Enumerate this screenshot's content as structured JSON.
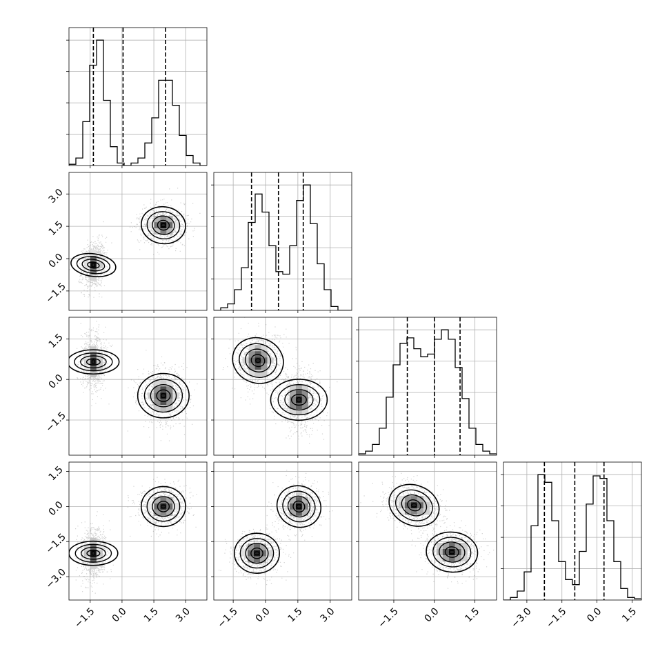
{
  "chart_data": {
    "type": "corner",
    "dimensions": 4,
    "grid": true,
    "axes": [
      {
        "range": [
          -2.5,
          4.0
        ],
        "ticks": [
          -1.5,
          0.0,
          1.5,
          3.0
        ],
        "tick_labels": [
          "−1.5",
          "0.0",
          "1.5",
          "3.0"
        ]
      },
      {
        "range": [
          -2.4,
          4.0
        ],
        "ticks": [
          -1.5,
          0.0,
          1.5,
          3.0
        ],
        "tick_labels": [
          "−1.5",
          "0.0",
          "1.5",
          "3.0"
        ]
      },
      {
        "range": [
          -2.8,
          2.3
        ],
        "ticks": [
          -1.5,
          0.0,
          1.5
        ],
        "tick_labels": [
          "−1.5",
          "0.0",
          "1.5"
        ]
      },
      {
        "range": [
          -4.0,
          1.9
        ],
        "ticks": [
          -3.0,
          -1.5,
          0.0,
          1.5
        ],
        "tick_labels": [
          "−3.0",
          "−1.5",
          "0.0",
          "1.5"
        ]
      }
    ],
    "histograms": [
      {
        "bin_start": -2.5,
        "bin_width": 0.325,
        "counts": [
          0.01,
          0.06,
          0.35,
          0.8,
          1.0,
          0.52,
          0.15,
          0.02,
          0.0,
          0.02,
          0.06,
          0.18,
          0.38,
          0.68,
          0.68,
          0.48,
          0.24,
          0.08,
          0.02,
          0.0
        ],
        "quantiles": [
          -1.35,
          0.05,
          2.05
        ]
      },
      {
        "bin_start": -2.4,
        "bin_width": 0.32,
        "counts": [
          0.0,
          0.02,
          0.05,
          0.16,
          0.33,
          0.68,
          0.9,
          0.76,
          0.5,
          0.3,
          0.28,
          0.5,
          0.85,
          0.97,
          0.67,
          0.36,
          0.16,
          0.03,
          0.0,
          0.0
        ],
        "quantiles": [
          -0.65,
          0.6,
          1.75
        ]
      },
      {
        "bin_start": -2.8,
        "bin_width": 0.255,
        "counts": [
          0.01,
          0.03,
          0.08,
          0.2,
          0.43,
          0.67,
          0.83,
          0.87,
          0.79,
          0.73,
          0.75,
          0.86,
          0.93,
          0.86,
          0.65,
          0.42,
          0.2,
          0.08,
          0.03,
          0.01
        ],
        "quantiles": [
          -1.0,
          0.0,
          0.95
        ]
      },
      {
        "bin_start": -4.0,
        "bin_width": 0.295,
        "counts": [
          0.0,
          0.02,
          0.07,
          0.22,
          0.58,
          0.98,
          0.92,
          0.62,
          0.3,
          0.16,
          0.12,
          0.38,
          0.75,
          0.97,
          0.95,
          0.62,
          0.3,
          0.09,
          0.02,
          0.01
        ],
        "quantiles": [
          -2.25,
          -0.95,
          0.3
        ]
      }
    ],
    "panels_2d": [
      {
        "x": 0,
        "y": 1,
        "clusters": [
          {
            "mx": -1.35,
            "my": -0.3,
            "sx": 0.28,
            "sy": 0.55,
            "rho": 0.2
          },
          {
            "mx": 1.95,
            "my": 1.55,
            "sx": 0.55,
            "sy": 0.45,
            "rho": -0.05
          }
        ]
      },
      {
        "x": 0,
        "y": 2,
        "clusters": [
          {
            "mx": -1.35,
            "my": 0.65,
            "sx": 0.3,
            "sy": 0.5,
            "rho": 0.0
          },
          {
            "mx": 1.95,
            "my": -0.6,
            "sx": 0.55,
            "sy": 0.5,
            "rho": 0.0
          }
        ]
      },
      {
        "x": 0,
        "y": 3,
        "clusters": [
          {
            "mx": -1.35,
            "my": -2.0,
            "sx": 0.3,
            "sy": 0.55,
            "rho": 0.0
          },
          {
            "mx": 1.95,
            "my": 0.0,
            "sx": 0.55,
            "sy": 0.45,
            "rho": 0.0
          }
        ]
      },
      {
        "x": 1,
        "y": 2,
        "clusters": [
          {
            "mx": -0.35,
            "my": 0.7,
            "sx": 0.55,
            "sy": 0.5,
            "rho": 0.1
          },
          {
            "mx": 1.55,
            "my": -0.75,
            "sx": 0.5,
            "sy": 0.55,
            "rho": 0.0
          }
        ]
      },
      {
        "x": 1,
        "y": 3,
        "clusters": [
          {
            "mx": -0.4,
            "my": -2.0,
            "sx": 0.55,
            "sy": 0.45,
            "rho": 0.0
          },
          {
            "mx": 1.55,
            "my": 0.0,
            "sx": 0.5,
            "sy": 0.5,
            "rho": 0.1
          }
        ]
      },
      {
        "x": 2,
        "y": 3,
        "clusters": [
          {
            "mx": -0.75,
            "my": 0.05,
            "sx": 0.5,
            "sy": 0.45,
            "rho": -0.25
          },
          {
            "mx": 0.65,
            "my": -1.95,
            "sx": 0.5,
            "sy": 0.45,
            "rho": -0.05
          }
        ]
      }
    ]
  }
}
